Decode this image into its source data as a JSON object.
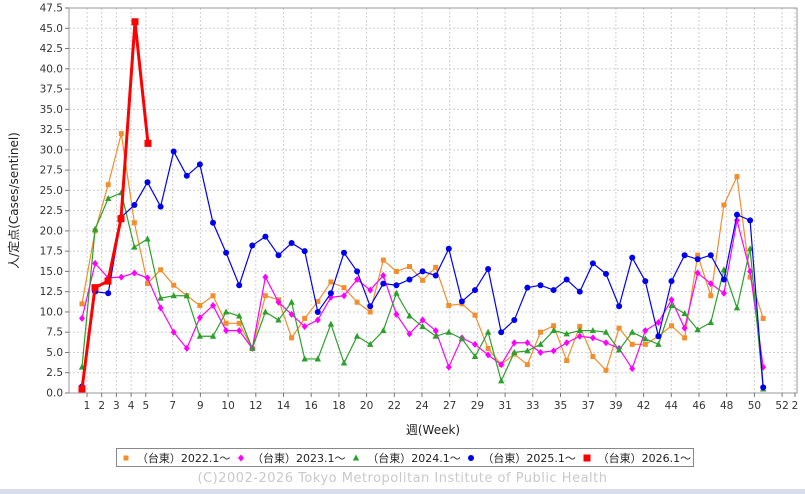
{
  "chart_data": {
    "type": "line",
    "xlabel": "週(Week)",
    "ylabel": "人/定点(Cases/sentinel)",
    "ylim": [
      0,
      47.5
    ],
    "yticks": [
      "0.0",
      "2.5",
      "5.0",
      "7.5",
      "10.0",
      "12.5",
      "15.0",
      "17.5",
      "20.0",
      "22.5",
      "25.0",
      "27.5",
      "30.0",
      "32.5",
      "35.0",
      "37.5",
      "40.0",
      "42.5",
      "45.0",
      "47.5"
    ],
    "xticks": [
      "1",
      "2",
      "3",
      "4",
      "5",
      "7",
      "9",
      "10",
      "12",
      "14",
      "16",
      "18",
      "20",
      "22",
      "24",
      "27",
      "29",
      "31",
      "33",
      "35",
      "37",
      "39",
      "42",
      "44",
      "46",
      "48",
      "50",
      "52",
      "2"
    ],
    "grid": true,
    "legend_position": "bottom",
    "series": [
      {
        "name": "（台東）2022.1～",
        "color": "#f28e2b",
        "marker": "square",
        "values": [
          11.0,
          20.0,
          25.7,
          32.0,
          21.0,
          13.5,
          15.2,
          13.3,
          12.0,
          10.8,
          12.0,
          8.6,
          8.6,
          5.5,
          12.0,
          11.5,
          6.8,
          9.2,
          11.3,
          13.7,
          13.0,
          11.2,
          10.0,
          16.4,
          15.0,
          15.6,
          13.9,
          15.5,
          10.8,
          11.0,
          9.6,
          5.5,
          3.5,
          4.8,
          3.5,
          7.5,
          8.3,
          4.0,
          8.2,
          4.5,
          2.8,
          8.0,
          6.0,
          6.0,
          7.0,
          8.3,
          6.8,
          17.0,
          12.0,
          23.2,
          26.7,
          14.3,
          9.2
        ]
      },
      {
        "name": "（台東）2023.1～",
        "color": "#ff00ff",
        "marker": "diamond",
        "values": [
          9.2,
          16.0,
          14.2,
          14.3,
          14.8,
          14.2,
          10.5,
          7.5,
          5.5,
          9.3,
          10.8,
          7.7,
          7.7,
          5.5,
          14.3,
          11.2,
          9.7,
          8.2,
          9.0,
          11.8,
          12.0,
          14.0,
          12.7,
          14.5,
          9.7,
          7.3,
          9.0,
          7.7,
          3.2,
          6.8,
          6.0,
          4.7,
          3.5,
          6.2,
          6.2,
          5.0,
          5.2,
          6.2,
          7.0,
          6.8,
          6.2,
          5.5,
          3.0,
          7.7,
          8.7,
          11.5,
          8.0,
          14.8,
          13.5,
          12.3,
          21.3,
          15.0,
          3.2
        ]
      },
      {
        "name": "（台東）2024.1～",
        "color": "#2ca02c",
        "marker": "triangle",
        "values": [
          3.2,
          20.2,
          24.0,
          24.7,
          18.0,
          19.0,
          11.7,
          12.0,
          12.0,
          7.0,
          7.0,
          10.0,
          9.5,
          5.5,
          10.0,
          9.0,
          11.2,
          4.2,
          4.2,
          8.5,
          3.7,
          7.0,
          6.0,
          7.7,
          12.3,
          9.5,
          8.2,
          7.0,
          7.5,
          6.7,
          4.5,
          7.5,
          1.5,
          5.0,
          5.2,
          6.0,
          7.7,
          7.3,
          7.7,
          7.7,
          7.5,
          5.3,
          7.5,
          6.7,
          6.0,
          10.8,
          9.8,
          7.8,
          8.7,
          15.2,
          10.5,
          17.8,
          0.5
        ]
      },
      {
        "name": "（台東）2025.1～",
        "color": "#0000ee",
        "marker": "circle",
        "values": [
          0.8,
          12.5,
          12.3,
          21.7,
          23.2,
          26.0,
          23.0,
          29.8,
          26.8,
          28.2,
          21.0,
          17.3,
          13.3,
          18.2,
          19.3,
          17.0,
          18.5,
          17.5,
          10.0,
          12.3,
          17.3,
          15.0,
          10.7,
          13.5,
          13.3,
          14.0,
          15.0,
          14.5,
          17.8,
          11.3,
          12.7,
          15.3,
          7.5,
          9.0,
          13.0,
          13.3,
          12.7,
          14.0,
          12.5,
          16.0,
          14.7,
          10.7,
          16.7,
          13.8,
          7.0,
          13.8,
          17.0,
          16.5,
          17.0,
          14.0,
          22.0,
          21.3,
          0.7
        ]
      },
      {
        "name": "（台東）2026.1～",
        "color": "#ff0000",
        "marker": "square-thick",
        "values": [
          0.5,
          13.0,
          13.8,
          21.5,
          45.8,
          30.8
        ]
      }
    ]
  },
  "credit": "(C)2002-2026 Tokyo Metropolitan Institute of Public Health"
}
